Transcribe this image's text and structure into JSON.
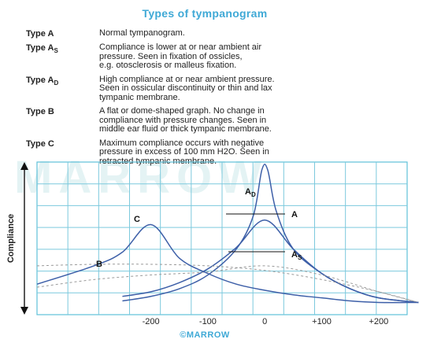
{
  "title": "Types of tympanogram",
  "types": [
    {
      "name": "Type A",
      "sub": "",
      "lines": [
        "Normal tympanogram."
      ]
    },
    {
      "name": "Type A",
      "sub": "S",
      "lines": [
        "Compliance is lower at or near ambient air",
        "pressure. Seen in fixation of ossicles,",
        "e.g. otosclerosis or malleus fixation."
      ]
    },
    {
      "name": "Type A",
      "sub": "D",
      "lines": [
        "High compliance at or near ambient pressure.",
        "Seen in ossicular discontinuity or thin and lax",
        "tympanic membrane."
      ]
    },
    {
      "name": "Type B",
      "sub": "",
      "lines": [
        "A flat or dome-shaped graph. No change in",
        "compliance with pressure changes. Seen in",
        "middle ear fluid or thick tympanic membrane."
      ]
    },
    {
      "name": "Type C",
      "sub": "",
      "lines": [
        "Maximum compliance occurs with negative",
        "pressure in excess of 100 mm H2O. Seen in",
        "retracted tympanic membrane."
      ]
    }
  ],
  "watermark": "MARROW",
  "footer": "©MARROW",
  "chart_data": {
    "type": "line",
    "ylabel": "Compliance",
    "x_ticks": [
      -200,
      -100,
      0,
      100,
      200
    ],
    "x_tick_labels": [
      "-200",
      "-100",
      "0",
      "+100",
      "+200"
    ],
    "xlim": [
      -400,
      250
    ],
    "ylim": [
      0,
      10
    ],
    "grid": true,
    "series": [
      {
        "name": "A",
        "label_sub": "",
        "style": "solid",
        "x": [
          -250,
          -200,
          -150,
          -100,
          -50,
          0,
          50,
          100,
          150,
          200,
          270
        ],
        "y": [
          1.2,
          1.5,
          2.1,
          3.0,
          4.4,
          6.2,
          4.3,
          2.7,
          1.7,
          1.1,
          0.8
        ]
      },
      {
        "name": "A",
        "label_sub": "D",
        "style": "solid",
        "x": [
          -250,
          -200,
          -150,
          -100,
          -50,
          -20,
          -5,
          5,
          20,
          50,
          100,
          150,
          200,
          270
        ],
        "y": [
          0.9,
          1.2,
          1.7,
          2.6,
          4.3,
          6.5,
          9.5,
          9.5,
          6.8,
          4.3,
          2.7,
          1.7,
          1.1,
          0.8
        ]
      },
      {
        "name": "A",
        "label_sub": "S",
        "style": "dashed",
        "x": [
          -400,
          -300,
          -200,
          -100,
          0,
          100,
          200,
          270
        ],
        "y": [
          1.8,
          2.3,
          2.6,
          2.8,
          3.2,
          2.6,
          1.5,
          0.8
        ]
      },
      {
        "name": "B",
        "label_sub": "",
        "style": "dashed",
        "x": [
          -400,
          -300,
          -200,
          -100,
          0,
          100,
          200,
          270
        ],
        "y": [
          3.2,
          3.3,
          3.3,
          3.2,
          2.9,
          2.3,
          1.5,
          0.8
        ]
      },
      {
        "name": "C",
        "label_sub": "",
        "style": "solid",
        "x": [
          -400,
          -300,
          -250,
          -200,
          -150,
          -100,
          -50,
          0,
          50,
          100,
          150,
          200,
          270
        ],
        "y": [
          2.0,
          3.2,
          4.1,
          5.9,
          3.7,
          2.7,
          2.0,
          1.6,
          1.3,
          1.1,
          0.9,
          0.8,
          0.8
        ]
      }
    ]
  }
}
